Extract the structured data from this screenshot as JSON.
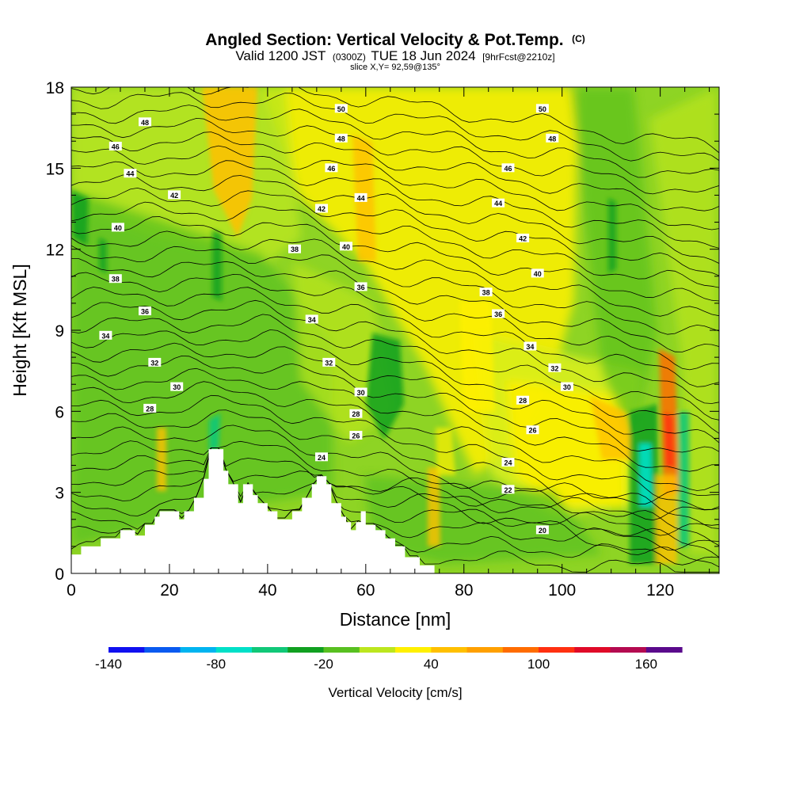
{
  "chart_data": {
    "type": "heatmap",
    "title": {
      "main": "Angled Section: Vertical Velocity & Pot.Temp.",
      "main_unit": "(C)",
      "valid_prefix": "Valid 1200 JST",
      "valid_utc": "(0300Z)",
      "valid_date": "TUE 18 Jun 2024",
      "forecast": "[9hrFcst@2210z]",
      "slice": "slice X,Y= 92,59@135°"
    },
    "xlabel": "Distance [nm]",
    "ylabel": "Height [Kft MSL]",
    "xlim": [
      0,
      132
    ],
    "ylim": [
      0,
      18
    ],
    "x_ticks": [
      0,
      20,
      40,
      60,
      80,
      100,
      120
    ],
    "y_ticks": [
      0,
      3,
      6,
      9,
      12,
      15,
      18
    ],
    "colorbar": {
      "label": "Vertical Velocity [cm/s]",
      "tick_labels": [
        "-140",
        "-80",
        "-20",
        "40",
        "100",
        "160"
      ],
      "tick_values": [
        -140,
        -80,
        -20,
        40,
        100,
        160
      ],
      "bin_edges": [
        -140,
        -120,
        -100,
        -80,
        -60,
        -40,
        -20,
        0,
        20,
        40,
        60,
        80,
        100,
        120,
        140,
        160,
        180
      ],
      "colors": [
        "#1010f0",
        "#0a5af0",
        "#00b4f0",
        "#00e0c8",
        "#10c878",
        "#10a020",
        "#58c020",
        "#bce61e",
        "#fff000",
        "#ffc000",
        "#ffa000",
        "#ff6c00",
        "#ff3010",
        "#e00a28",
        "#b40a50",
        "#5a0a8c"
      ]
    },
    "terrain": [
      [
        0,
        0.7
      ],
      [
        2,
        0.7
      ],
      [
        2,
        1
      ],
      [
        6,
        1
      ],
      [
        6,
        1.3
      ],
      [
        10,
        1.3
      ],
      [
        10,
        1.6
      ],
      [
        13,
        1.6
      ],
      [
        13,
        1.4
      ],
      [
        15,
        1.4
      ],
      [
        15,
        1.8
      ],
      [
        17,
        1.8
      ],
      [
        17,
        2.1
      ],
      [
        18,
        2.1
      ],
      [
        18,
        2.3
      ],
      [
        22,
        2.3
      ],
      [
        22,
        2
      ],
      [
        23,
        2
      ],
      [
        23,
        2.3
      ],
      [
        25,
        2.3
      ],
      [
        25,
        2.8
      ],
      [
        27,
        2.8
      ],
      [
        27,
        3.5
      ],
      [
        28,
        3.5
      ],
      [
        28,
        4.6
      ],
      [
        31,
        4.6
      ],
      [
        31,
        3.8
      ],
      [
        32,
        3.8
      ],
      [
        32,
        3.3
      ],
      [
        34,
        3.3
      ],
      [
        34,
        2.6
      ],
      [
        35,
        2.6
      ],
      [
        35,
        3.3
      ],
      [
        37,
        3.3
      ],
      [
        37,
        2.9
      ],
      [
        38,
        2.9
      ],
      [
        38,
        2.6
      ],
      [
        40,
        2.6
      ],
      [
        40,
        2.3
      ],
      [
        42,
        2.3
      ],
      [
        42,
        2
      ],
      [
        45,
        2
      ],
      [
        45,
        2.3
      ],
      [
        47,
        2.3
      ],
      [
        47,
        2.8
      ],
      [
        49,
        2.8
      ],
      [
        49,
        3.3
      ],
      [
        50,
        3.3
      ],
      [
        50,
        3.6
      ],
      [
        52,
        3.6
      ],
      [
        52,
        3.3
      ],
      [
        53,
        3.3
      ],
      [
        53,
        2.6
      ],
      [
        55,
        2.6
      ],
      [
        55,
        2.1
      ],
      [
        56,
        2.1
      ],
      [
        56,
        1.9
      ],
      [
        57,
        1.9
      ],
      [
        57,
        1.6
      ],
      [
        58,
        1.6
      ],
      [
        58,
        1.9
      ],
      [
        59,
        1.9
      ],
      [
        59,
        2.3
      ],
      [
        60,
        2.3
      ],
      [
        60,
        1.8
      ],
      [
        62,
        1.8
      ],
      [
        62,
        1.6
      ],
      [
        64,
        1.6
      ],
      [
        64,
        1.3
      ],
      [
        66,
        1.3
      ],
      [
        66,
        1
      ],
      [
        68,
        1
      ],
      [
        68,
        0.6
      ],
      [
        71,
        0.6
      ],
      [
        71,
        0.3
      ],
      [
        74,
        0.3
      ],
      [
        74,
        0
      ],
      [
        132,
        0
      ]
    ],
    "isentropes": {
      "unit": "C",
      "levels": [
        20,
        22,
        24,
        26,
        28,
        30,
        32,
        34,
        36,
        38,
        40,
        42,
        44,
        46,
        48,
        50
      ],
      "labels": [
        {
          "text": "48",
          "x": 15,
          "y": 16.7
        },
        {
          "text": "46",
          "x": 9,
          "y": 15.8
        },
        {
          "text": "44",
          "x": 12,
          "y": 14.8
        },
        {
          "text": "42",
          "x": 21,
          "y": 14
        },
        {
          "text": "40",
          "x": 9.5,
          "y": 12.8
        },
        {
          "text": "38",
          "x": 9,
          "y": 10.9
        },
        {
          "text": "36",
          "x": 15,
          "y": 9.7
        },
        {
          "text": "34",
          "x": 7,
          "y": 8.8
        },
        {
          "text": "32",
          "x": 17,
          "y": 7.8
        },
        {
          "text": "30",
          "x": 21.5,
          "y": 6.9
        },
        {
          "text": "28",
          "x": 16,
          "y": 6.1
        },
        {
          "text": "50",
          "x": 55,
          "y": 17.2
        },
        {
          "text": "48",
          "x": 55,
          "y": 16.1
        },
        {
          "text": "46",
          "x": 53,
          "y": 15
        },
        {
          "text": "44",
          "x": 59,
          "y": 13.9
        },
        {
          "text": "42",
          "x": 51,
          "y": 13.5
        },
        {
          "text": "40",
          "x": 56,
          "y": 12.1
        },
        {
          "text": "38",
          "x": 45.5,
          "y": 12
        },
        {
          "text": "36",
          "x": 59,
          "y": 10.6
        },
        {
          "text": "34",
          "x": 49,
          "y": 9.4
        },
        {
          "text": "32",
          "x": 52.5,
          "y": 7.8
        },
        {
          "text": "30",
          "x": 59,
          "y": 6.7
        },
        {
          "text": "28",
          "x": 58,
          "y": 5.9
        },
        {
          "text": "26",
          "x": 58,
          "y": 5.1
        },
        {
          "text": "24",
          "x": 51,
          "y": 4.3
        },
        {
          "text": "50",
          "x": 96,
          "y": 17.2
        },
        {
          "text": "48",
          "x": 98,
          "y": 16.1
        },
        {
          "text": "46",
          "x": 89,
          "y": 15
        },
        {
          "text": "44",
          "x": 87,
          "y": 13.7
        },
        {
          "text": "42",
          "x": 92,
          "y": 12.4
        },
        {
          "text": "40",
          "x": 95,
          "y": 11.1
        },
        {
          "text": "38",
          "x": 84.5,
          "y": 10.4
        },
        {
          "text": "36",
          "x": 87,
          "y": 9.6
        },
        {
          "text": "34",
          "x": 93.5,
          "y": 8.4
        },
        {
          "text": "32",
          "x": 98.5,
          "y": 7.6
        },
        {
          "text": "30",
          "x": 101,
          "y": 6.9
        },
        {
          "text": "28",
          "x": 92,
          "y": 6.4
        },
        {
          "text": "26",
          "x": 94,
          "y": 5.3
        },
        {
          "text": "24",
          "x": 89,
          "y": 4.1
        },
        {
          "text": "22",
          "x": 89,
          "y": 3.1
        },
        {
          "text": "20",
          "x": 96,
          "y": 1.6
        }
      ]
    },
    "vertical_velocity_features": [
      {
        "x": [
          26,
          33
        ],
        "y": [
          9,
          18
        ],
        "vmin": 40,
        "vmax": 60
      },
      {
        "x": [
          58,
          62
        ],
        "y": [
          11,
          17
        ],
        "vmin": 40,
        "vmax": 60
      },
      {
        "x": [
          60,
          68
        ],
        "y": [
          5,
          9
        ],
        "vmin": -40,
        "vmax": -20
      },
      {
        "x": [
          104,
          112
        ],
        "y": [
          4,
          7
        ],
        "vmin": 40,
        "vmax": 60
      },
      {
        "x": [
          114,
          118
        ],
        "y": [
          0,
          6
        ],
        "vmin": -60,
        "vmax": -20
      },
      {
        "x": [
          119,
          123
        ],
        "y": [
          2,
          8
        ],
        "vmin": 60,
        "vmax": 100
      },
      {
        "x": [
          123,
          126
        ],
        "y": [
          1,
          7
        ],
        "vmin": -60,
        "vmax": -40
      },
      {
        "x": [
          0,
          4
        ],
        "y": [
          12,
          14.5
        ],
        "vmin": -40,
        "vmax": -20
      },
      {
        "x": [
          109,
          111
        ],
        "y": [
          11.5,
          14
        ],
        "vmin": -40,
        "vmax": -20
      },
      {
        "x": [
          28,
          31
        ],
        "y": [
          4.5,
          5.8
        ],
        "vmin": -60,
        "vmax": -40
      }
    ]
  }
}
